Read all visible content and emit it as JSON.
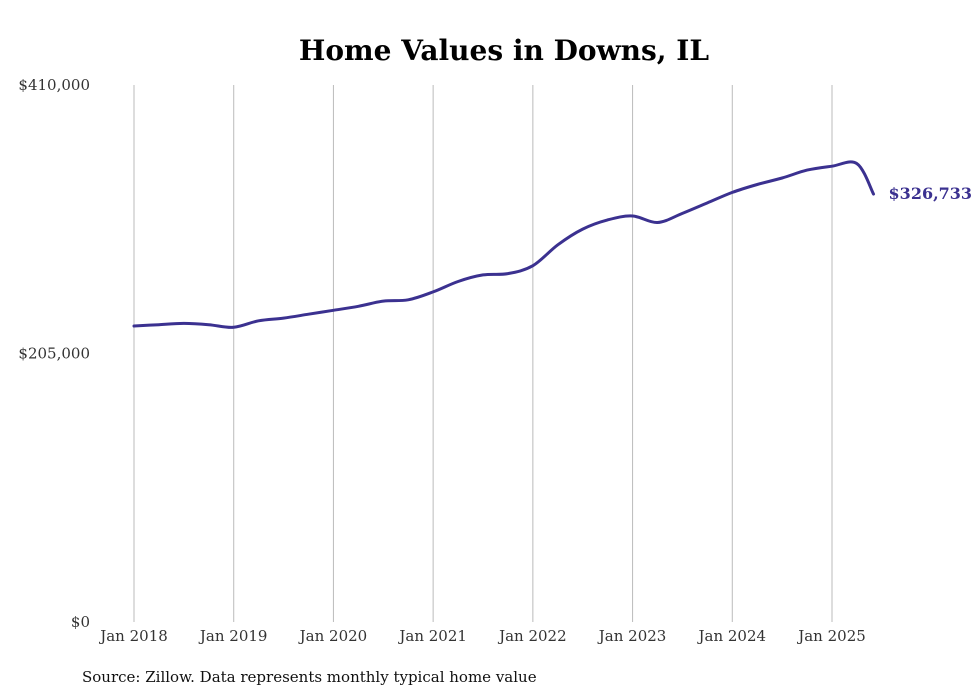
{
  "chart_data": {
    "type": "line",
    "title": "Home Values in Downs, IL",
    "xlabel": "",
    "ylabel": "",
    "x_start": "2018-01",
    "x_ticks": [
      "Jan 2018",
      "Jan 2019",
      "Jan 2020",
      "Jan 2021",
      "Jan 2022",
      "Jan 2023",
      "Jan 2024",
      "Jan 2025"
    ],
    "y_ticks": [
      "$0",
      "$205,000",
      "$410,000"
    ],
    "ylim": [
      0,
      410000
    ],
    "grid": {
      "vertical": true,
      "horizontal": false
    },
    "end_label": "$326,733",
    "series": [
      {
        "color": "#3b3190",
        "x": [
          "2018-01",
          "2018-04",
          "2018-07",
          "2018-10",
          "2019-01",
          "2019-04",
          "2019-07",
          "2019-10",
          "2020-01",
          "2020-04",
          "2020-07",
          "2020-10",
          "2021-01",
          "2021-04",
          "2021-07",
          "2021-10",
          "2022-01",
          "2022-04",
          "2022-07",
          "2022-10",
          "2023-01",
          "2023-04",
          "2023-07",
          "2023-10",
          "2024-01",
          "2024-04",
          "2024-07",
          "2024-10",
          "2025-01",
          "2025-04",
          "2025-06"
        ],
        "values": [
          226000,
          227000,
          228000,
          227000,
          225000,
          230000,
          232000,
          235000,
          238000,
          241000,
          245000,
          246000,
          252000,
          260000,
          265000,
          266000,
          272000,
          288000,
          300000,
          307000,
          310000,
          305000,
          312000,
          320000,
          328000,
          334000,
          339000,
          345000,
          348000,
          350000,
          326733
        ]
      }
    ]
  },
  "footer": {
    "source": "Source: Zillow. Data represents monthly typical home value"
  }
}
